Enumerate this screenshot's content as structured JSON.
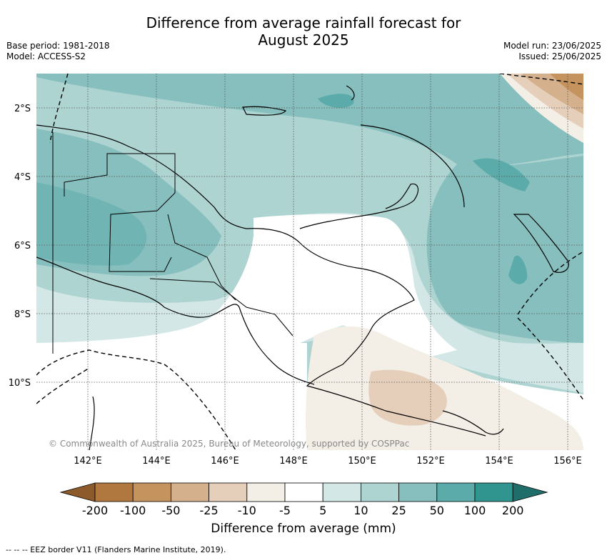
{
  "title": {
    "line1": "Difference from average rainfall forecast for",
    "line2": "August 2025"
  },
  "meta_left": {
    "base_period": "Base period: 1981-2018",
    "model": "Model: ACCESS-S2"
  },
  "meta_right": {
    "model_run": "Model run: 23/06/2025",
    "issued": "Issued: 25/06/2025"
  },
  "lat_labels": [
    {
      "value": -2,
      "label": "2°S"
    },
    {
      "value": -4,
      "label": "4°S"
    },
    {
      "value": -6,
      "label": "6°S"
    },
    {
      "value": -8,
      "label": "8°S"
    },
    {
      "value": -10,
      "label": "10°S"
    }
  ],
  "lon_labels": [
    {
      "value": 142,
      "label": "142°E"
    },
    {
      "value": 144,
      "label": "144°E"
    },
    {
      "value": 146,
      "label": "146°E"
    },
    {
      "value": 148,
      "label": "148°E"
    },
    {
      "value": 150,
      "label": "150°E"
    },
    {
      "value": 152,
      "label": "152°E"
    },
    {
      "value": 154,
      "label": "154°E"
    },
    {
      "value": 156,
      "label": "156°E"
    }
  ],
  "copyright": "© Commonwealth of Australia 2025, Bureau of Meteorology, supported by COSPPac",
  "colorbar": {
    "title": "Difference from average (mm)",
    "ticks": [
      "-200",
      "-100",
      "-50",
      "-25",
      "-10",
      "-5",
      "5",
      "10",
      "25",
      "50",
      "100",
      "200"
    ],
    "colors": [
      "#8c5a2b",
      "#b0773e",
      "#c4935e",
      "#d4b08c",
      "#e6cfba",
      "#f3eee6",
      "#ffffff",
      "#d3e8e6",
      "#aed4d2",
      "#86bfbe",
      "#5aabaa",
      "#30958f",
      "#1f6e6b"
    ]
  },
  "footer": "--  --  -- EEZ border V11 (Flanders Marine Institute, 2019)."
}
